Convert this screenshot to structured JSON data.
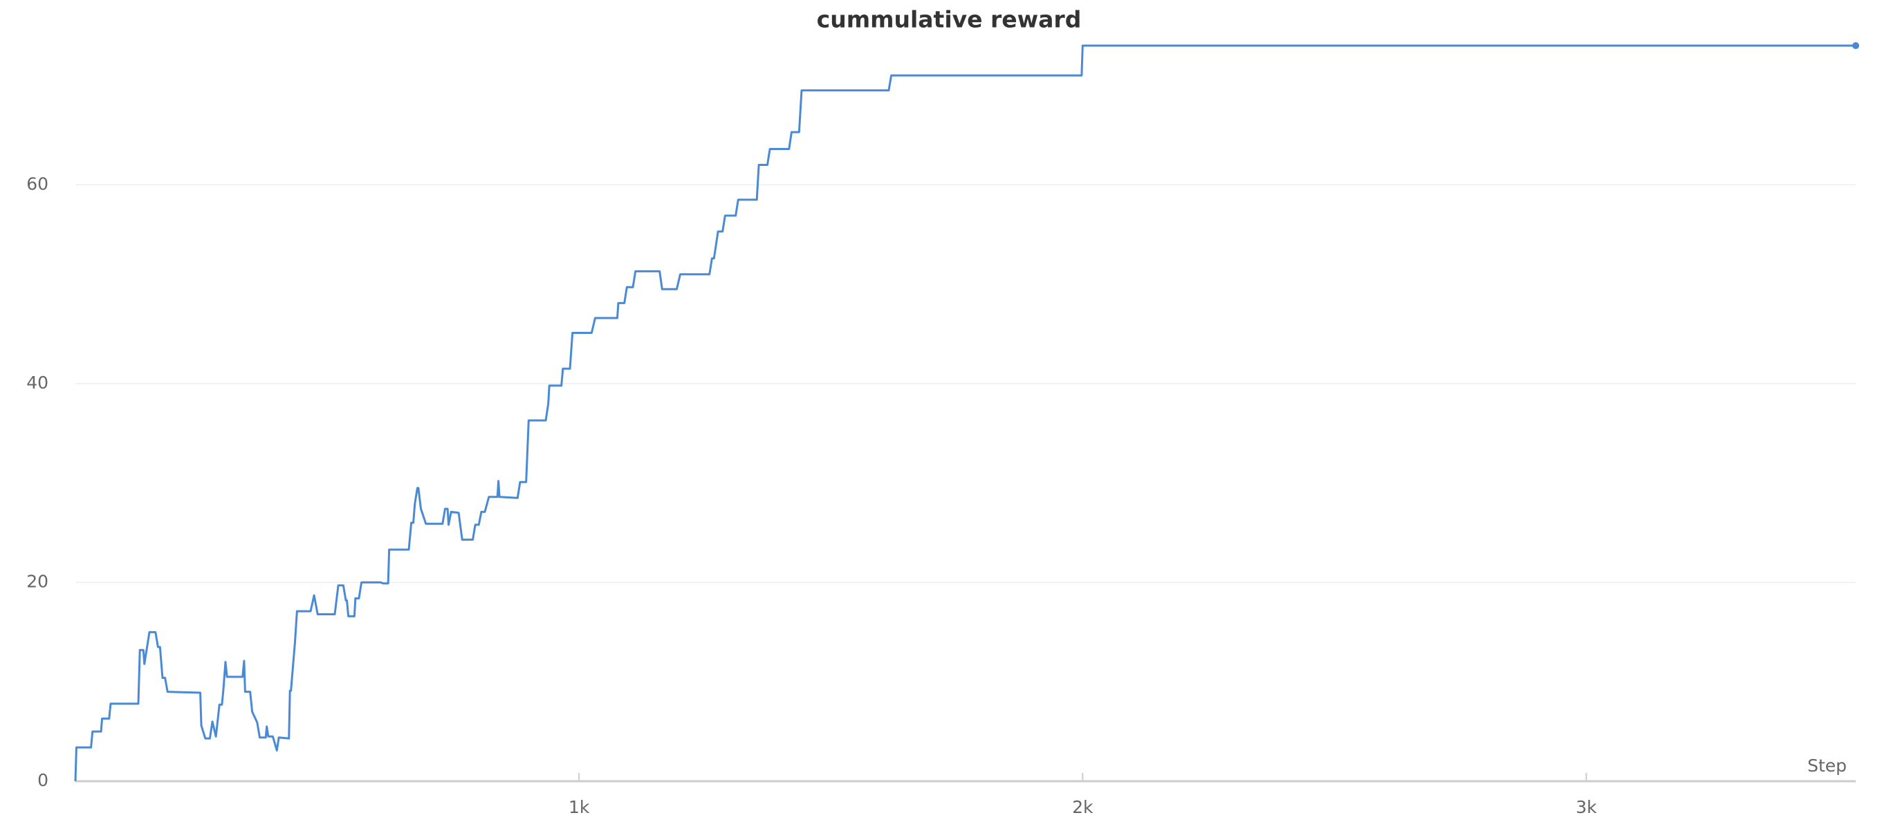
{
  "chart_data": {
    "type": "line",
    "title": "cummulative reward",
    "x_label": "Step",
    "xlim": [
      0,
      3535
    ],
    "ylim": [
      0,
      74
    ],
    "xticks": [
      {
        "value": 1000,
        "label": "1k"
      },
      {
        "value": 2000,
        "label": "2k"
      },
      {
        "value": 3000,
        "label": "3k"
      }
    ],
    "yticks": [
      0,
      20,
      40,
      60
    ],
    "grid": true,
    "series": [
      {
        "color": "#4a8ad4",
        "x": [
          0,
          2,
          31,
          34,
          51,
          53,
          67,
          70,
          125,
          128,
          135,
          137,
          142,
          147,
          159,
          164,
          168,
          173,
          178,
          183,
          248,
          250,
          258,
          267,
          272,
          279,
          286,
          291,
          294,
          298,
          301,
          332,
          335,
          337,
          347,
          351,
          361,
          366,
          378,
          380,
          383,
          392,
          400,
          404,
          424,
          426,
          428,
          436,
          440,
          467,
          474,
          481,
          515,
          522,
          532,
          537,
          539,
          542,
          554,
          556,
          563,
          568,
          606,
          611,
          621,
          623,
          662,
          667,
          671,
          674,
          679,
          681,
          686,
          696,
          729,
          734,
          739,
          741,
          746,
          761,
          768,
          789,
          794,
          801,
          806,
          813,
          821,
          838,
          840,
          842,
          878,
          883,
          895,
          900,
          934,
          939,
          941,
          965,
          968,
          982,
          987,
          1025,
          1032,
          1076,
          1078,
          1090,
          1095,
          1107,
          1112,
          1160,
          1165,
          1194,
          1201,
          1259,
          1264,
          1268,
          1276,
          1285,
          1290,
          1311,
          1316,
          1353,
          1357,
          1374,
          1379,
          1417,
          1422,
          1437,
          1442,
          1615,
          1620,
          1998,
          2000,
          3535
        ],
        "values": [
          0,
          3.4,
          3.4,
          5.0,
          5.0,
          6.3,
          6.3,
          7.8,
          7.8,
          13.2,
          13.2,
          11.8,
          13.4,
          15.0,
          15.0,
          13.5,
          13.5,
          10.4,
          10.4,
          9.0,
          8.9,
          5.6,
          4.3,
          4.3,
          6.0,
          4.5,
          7.7,
          7.7,
          9.3,
          12.0,
          10.5,
          10.5,
          12.1,
          9.0,
          9.0,
          7.0,
          5.9,
          4.4,
          4.4,
          5.5,
          4.5,
          4.5,
          3.1,
          4.4,
          4.3,
          9.1,
          9.1,
          14.0,
          17.1,
          17.1,
          18.7,
          16.8,
          16.8,
          19.7,
          19.7,
          18.2,
          18.2,
          16.6,
          16.6,
          18.4,
          18.4,
          20.0,
          20.0,
          19.9,
          19.9,
          23.3,
          23.3,
          26.0,
          26.0,
          27.9,
          29.5,
          29.5,
          27.4,
          25.9,
          25.9,
          27.4,
          27.4,
          25.8,
          27.1,
          27.0,
          24.3,
          24.3,
          25.8,
          25.8,
          27.1,
          27.1,
          28.6,
          28.6,
          30.2,
          28.6,
          28.5,
          30.1,
          30.1,
          36.3,
          36.3,
          38.0,
          39.8,
          39.8,
          41.5,
          41.5,
          45.1,
          45.1,
          46.6,
          46.6,
          48.1,
          48.1,
          49.7,
          49.7,
          51.3,
          51.3,
          49.5,
          49.5,
          51.0,
          51.0,
          52.6,
          52.6,
          55.3,
          55.3,
          56.9,
          56.9,
          58.5,
          58.5,
          62.0,
          62.0,
          63.6,
          63.6,
          65.3,
          65.3,
          69.5,
          69.5,
          71.0,
          71.0,
          74.0,
          74.0
        ]
      }
    ]
  }
}
